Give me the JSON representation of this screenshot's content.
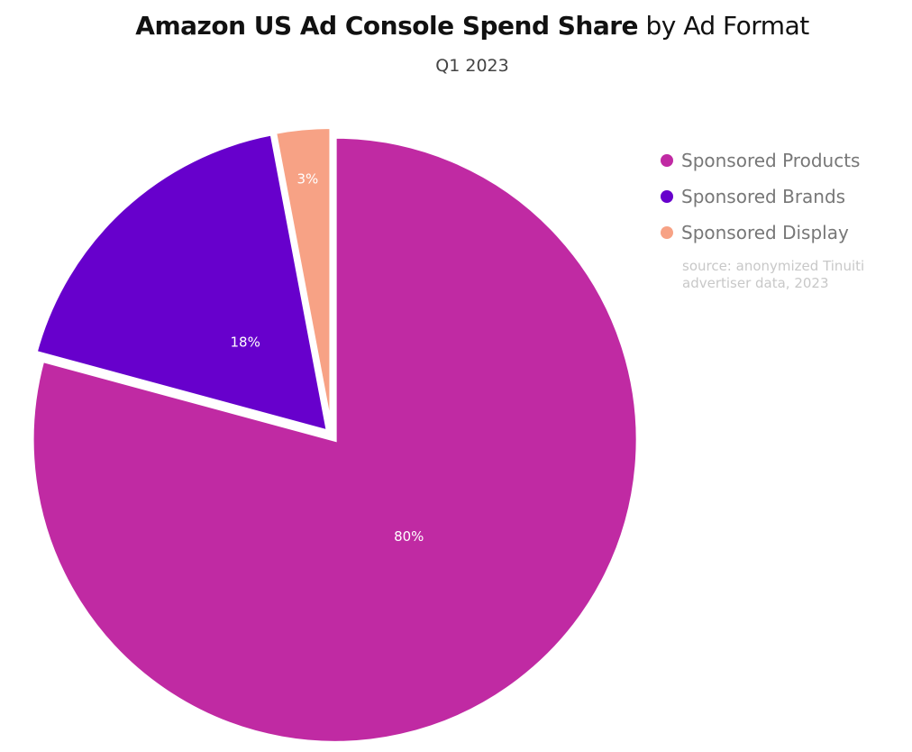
{
  "header": {
    "title_bold": "Amazon US Ad Console Spend Share",
    "title_light": "by Ad Format",
    "subtitle": "Q1 2023"
  },
  "source_note": "source: anonymized Tinuiti advertiser data, 2023",
  "chart_data": {
    "type": "pie",
    "title": "Amazon US Ad Console Spend Share by Ad Format",
    "subtitle": "Q1 2023",
    "categories": [
      "Sponsored Products",
      "Sponsored Brands",
      "Sponsored Display"
    ],
    "values": [
      80,
      18,
      3
    ],
    "data_labels": [
      "80%",
      "18%",
      "3%"
    ],
    "colors": [
      "#c02aa3",
      "#6700cc",
      "#f7a285"
    ],
    "legend_position": "right",
    "start_angle": "12 o'clock",
    "direction": "clockwise"
  }
}
